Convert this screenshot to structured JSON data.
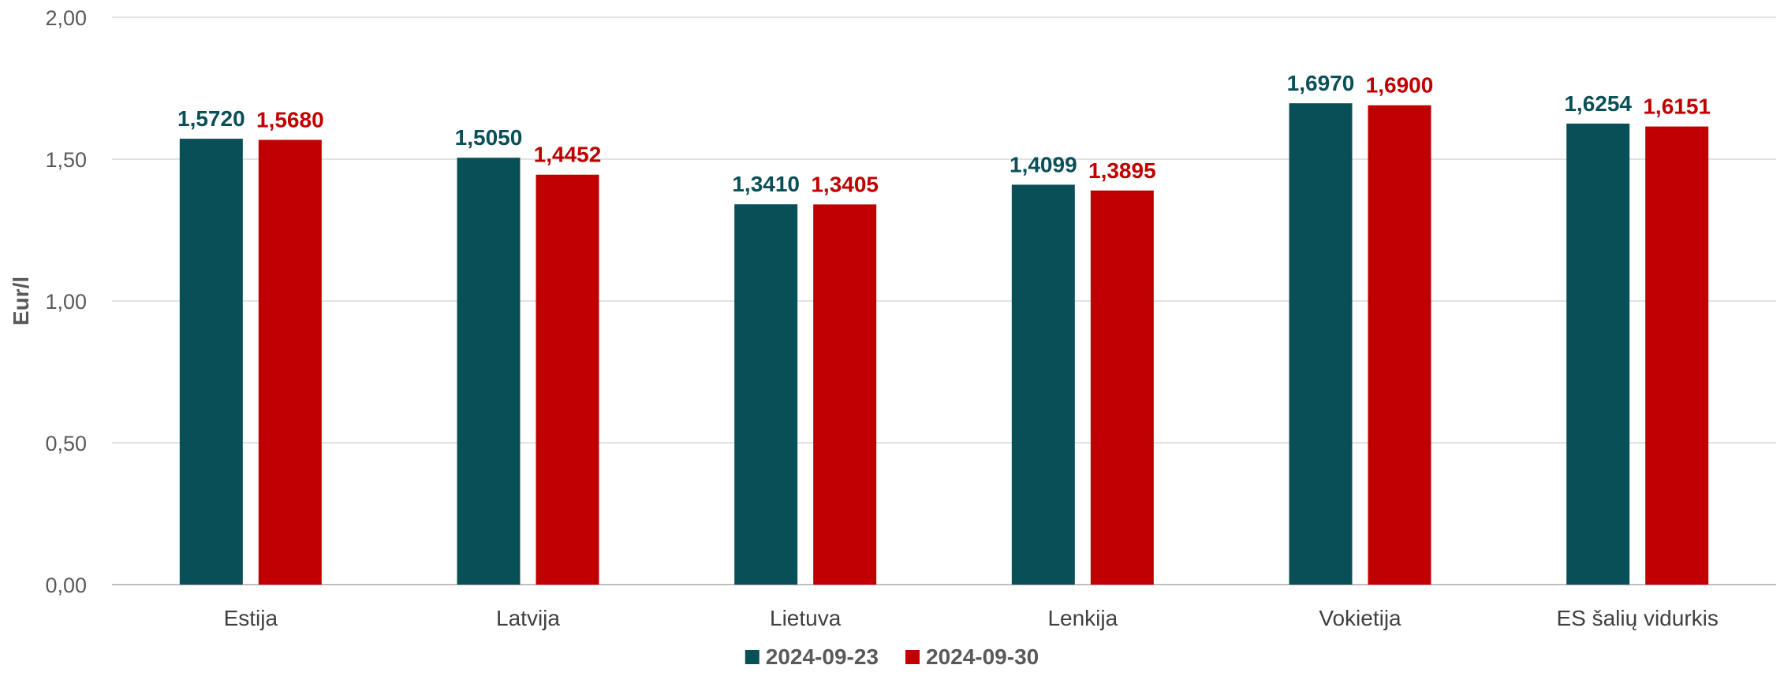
{
  "chart_data": {
    "type": "bar",
    "ylabel": "Eur/l",
    "xlabel": "",
    "ylim": [
      0,
      2
    ],
    "yticks": [
      "0,00",
      "0,50",
      "1,00",
      "1,50",
      "2,00"
    ],
    "ytick_values": [
      0,
      0.5,
      1,
      1.5,
      2
    ],
    "grid": true,
    "legend": "bottom",
    "categories": [
      "Estija",
      "Latvija",
      "Lietuva",
      "Lenkija",
      "Vokietija",
      "ES šalių vidurkis"
    ],
    "series": [
      {
        "name": "2024-09-23",
        "color": "#094F57",
        "values": [
          1.572,
          1.505,
          1.341,
          1.4099,
          1.697,
          1.6254
        ],
        "labels": [
          "1,5720",
          "1,5050",
          "1,3410",
          "1,4099",
          "1,6970",
          "1,6254"
        ]
      },
      {
        "name": "2024-09-30",
        "color": "#C00000",
        "values": [
          1.568,
          1.4452,
          1.3405,
          1.3895,
          1.69,
          1.6151
        ],
        "labels": [
          "1,5680",
          "1,4452",
          "1,3405",
          "1,3895",
          "1,6900",
          "1,6151"
        ]
      }
    ]
  }
}
